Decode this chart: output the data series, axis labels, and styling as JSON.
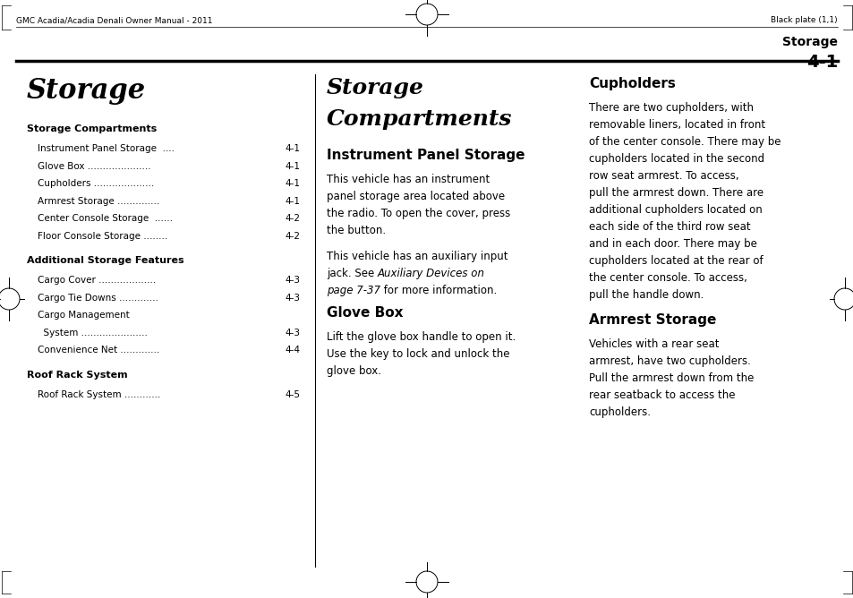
{
  "bg_color": "#ffffff",
  "page_width": 9.54,
  "page_height": 6.68,
  "header_left": "GMC Acadia/Acadia Denali Owner Manual - 2011",
  "header_right": "Black plate (1,1)",
  "page_label": "Storage",
  "page_number": "4-1",
  "col1_title": "Storage",
  "col1_sections": [
    {
      "heading": "Storage Compartments",
      "items": [
        {
          "text": "Instrument Panel Storage  .... ",
          "page": "4-1"
        },
        {
          "text": "Glove Box ..................... ",
          "page": "4-1"
        },
        {
          "text": "Cupholders .................... ",
          "page": "4-1"
        },
        {
          "text": "Armrest Storage .............. ",
          "page": "4-1"
        },
        {
          "text": "Center Console Storage  ...... ",
          "page": "4-2"
        },
        {
          "text": "Floor Console Storage ........ ",
          "page": "4-2"
        }
      ]
    },
    {
      "heading": "Additional Storage Features",
      "items": [
        {
          "text": "Cargo Cover ................... ",
          "page": "4-3"
        },
        {
          "text": "Cargo Tie Downs ............. ",
          "page": "4-3"
        },
        {
          "text": "Cargo Management",
          "page": ""
        },
        {
          "text": "  System ...................... ",
          "page": "4-3"
        },
        {
          "text": "Convenience Net ............. ",
          "page": "4-4"
        }
      ]
    },
    {
      "heading": "Roof Rack System",
      "items": [
        {
          "text": "Roof Rack System ............ ",
          "page": "4-5"
        }
      ]
    }
  ],
  "col2_title": "Storage\nCompartments",
  "col2_sections": [
    {
      "heading": "Instrument Panel Storage",
      "body": "This vehicle has an instrument panel storage area located above the radio. To open the cover, press the button.\n\nThis vehicle has an auxiliary input jack. See Auxiliary Devices on page 7-37 for more information."
    },
    {
      "heading": "Glove Box",
      "body": "Lift the glove box handle to open it. Use the key to lock and unlock the glove box."
    }
  ],
  "col3_sections": [
    {
      "heading": "Cupholders",
      "body": "There are two cupholders, with removable liners, located in front of the center console. There may be cupholders located in the second row seat armrest. To access, pull the armrest down. There are additional cupholders located on each side of the third row seat and in each door. There may be cupholders located at the rear of the center console. To access, pull the handle down."
    },
    {
      "heading": "Armrest Storage",
      "body": "Vehicles with a rear seat armrest, have two cupholders. Pull the armrest down from the rear seatback to access the cupholders."
    }
  ]
}
